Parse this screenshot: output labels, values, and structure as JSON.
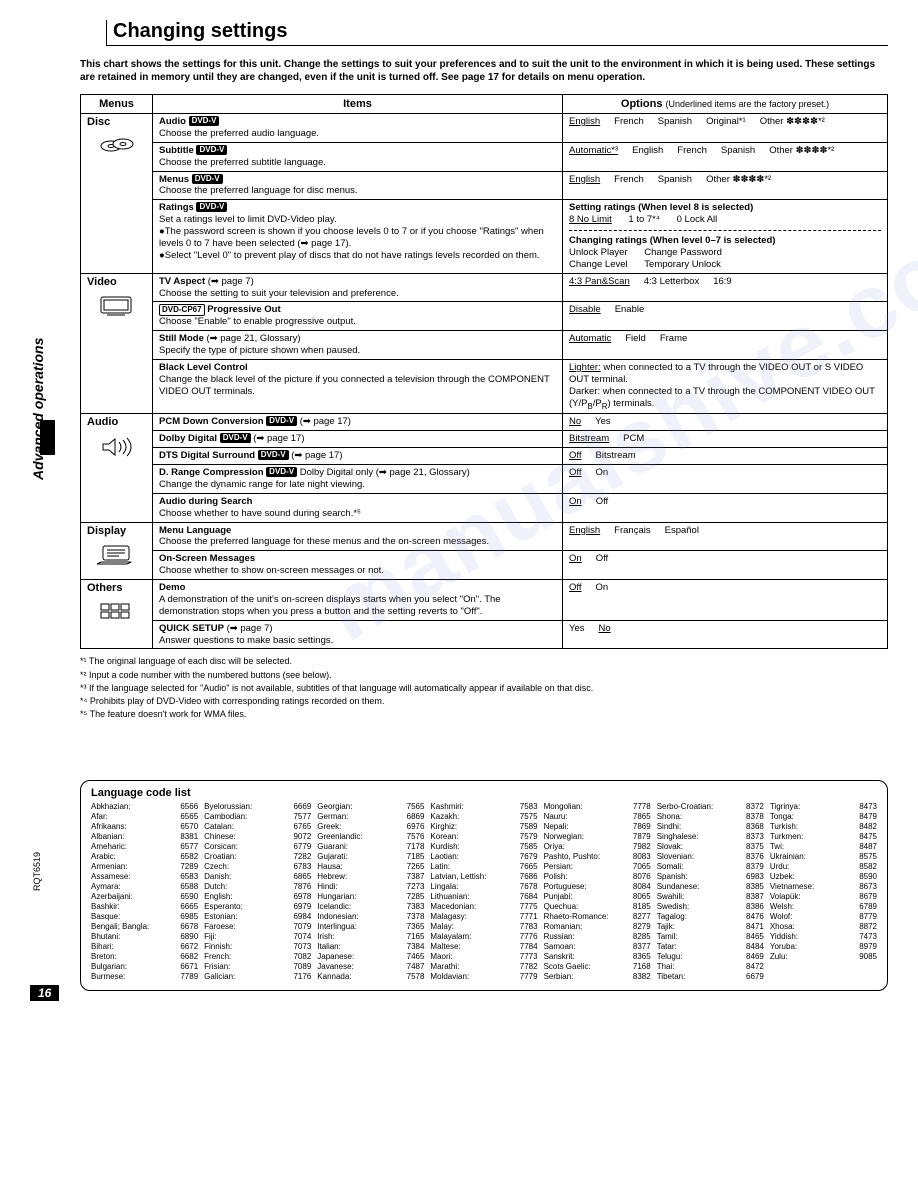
{
  "side_label": "Advanced operations",
  "doc_code": "RQT6519",
  "page_number": "16",
  "title": "Changing settings",
  "intro": "This chart shows the settings for this unit. Change the settings to suit your preferences and to suit the unit to the environment in which it is being used. These settings are retained in memory until they are changed, even if the unit is turned off. See page 17 for details on menu operation.",
  "headers": {
    "menus": "Menus",
    "items": "Items",
    "options": "Options",
    "options_note": "(Underlined items are the factory preset.)"
  },
  "menu_names": {
    "disc": "Disc",
    "video": "Video",
    "audio": "Audio",
    "display": "Display",
    "others": "Others"
  },
  "disc": {
    "audio": {
      "title": "Audio",
      "badge": "DVD-V",
      "desc": "Choose the preferred audio language.",
      "opts": [
        "English",
        "French",
        "Spanish",
        "Original*¹",
        "Other ✽✽✽✽*²"
      ],
      "preset": 0
    },
    "subtitle": {
      "title": "Subtitle",
      "badge": "DVD-V",
      "desc": "Choose the preferred subtitle language.",
      "opts": [
        "Automatic*³",
        "English",
        "French",
        "Spanish",
        "Other ✽✽✽✽*²"
      ],
      "preset": 0
    },
    "menus": {
      "title": "Menus",
      "badge": "DVD-V",
      "desc": "Choose the preferred language for disc menus.",
      "opts": [
        "English",
        "French",
        "Spanish",
        "Other ✽✽✽✽*²"
      ],
      "preset": 0
    },
    "ratings": {
      "title": "Ratings",
      "badge": "DVD-V",
      "desc": "Set a ratings level to limit DVD-Video play.",
      "b1": "●The password screen is shown if you choose levels 0 to 7 or if you choose \"Ratings\" when levels 0 to 7 have been selected (➡ page 17).",
      "b2": "●Select \"Level 0\" to prevent play of discs that do not have ratings levels recorded on them.",
      "set_title": "Setting ratings (When level 8 is selected)",
      "set_opts": [
        "8 No Limit",
        "1 to 7*⁴",
        "0 Lock All"
      ],
      "chg_title": "Changing ratings (When level 0–7 is selected)",
      "chg_opts": [
        "Unlock Player",
        "Change Password",
        "Change Level",
        "Temporary Unlock"
      ]
    }
  },
  "video": {
    "tv_aspect": {
      "title": "TV Aspect",
      "ref": "(➡ page 7)",
      "desc": "Choose the setting to suit your television and preference.",
      "opts": [
        "4:3 Pan&Scan",
        "4:3 Letterbox",
        "16:9"
      ],
      "preset": 0
    },
    "prog_out": {
      "badge": "DVD-CP67",
      "title": "Progressive Out",
      "desc": "Choose \"Enable\" to enable progressive output.",
      "opts": [
        "Disable",
        "Enable"
      ],
      "preset": 0
    },
    "still": {
      "title": "Still Mode",
      "ref": "(➡ page 21, Glossary)",
      "desc": "Specify the type of picture shown when paused.",
      "opts": [
        "Automatic",
        "Field",
        "Frame"
      ],
      "preset": 0
    },
    "black": {
      "title": "Black Level Control",
      "desc": "Change the black level of the picture if you connected a television through the COMPONENT VIDEO OUT terminals.",
      "l1": "Lighter: when connected to a TV through the VIDEO OUT or S VIDEO OUT terminal.",
      "l2": "Darker: when connected to a TV through the COMPONENT VIDEO OUT (Y/Pʙ/Pʀ) terminals."
    }
  },
  "audio": {
    "pcm": {
      "title": "PCM Down Conversion",
      "badge": "DVD-V",
      "ref": "(➡ page 17)",
      "opts": [
        "No",
        "Yes"
      ],
      "preset": 0
    },
    "dolby": {
      "title": "Dolby Digital",
      "badge": "DVD-V",
      "ref": "(➡ page 17)",
      "opts": [
        "Bitstream",
        "PCM"
      ],
      "preset": 0
    },
    "dts": {
      "title": "DTS Digital Surround",
      "badge": "DVD-V",
      "ref": "(➡ page 17)",
      "opts": [
        "Off",
        "Bitstream"
      ],
      "preset": 0
    },
    "drange": {
      "title": "D. Range Compression",
      "badge": "DVD-V",
      "note": "Dolby Digital only (➡ page 21, Glossary)",
      "desc": "Change the dynamic range for late night viewing.",
      "opts": [
        "Off",
        "On"
      ],
      "preset": 0
    },
    "search": {
      "title": "Audio during Search",
      "desc": "Choose whether to have sound during search.*⁵",
      "opts": [
        "On",
        "Off"
      ],
      "preset": 0
    }
  },
  "display": {
    "menu_lang": {
      "title": "Menu Language",
      "desc": "Choose the preferred language for these menus and the on-screen messages.",
      "opts": [
        "English",
        "Français",
        "Español"
      ],
      "preset": 0
    },
    "osd": {
      "title": "On-Screen Messages",
      "desc": "Choose whether to show on-screen messages or not.",
      "opts": [
        "On",
        "Off"
      ],
      "preset": 0
    }
  },
  "others": {
    "demo": {
      "title": "Demo",
      "desc": "A demonstration of the unit's on-screen displays starts when you select \"On\". The demonstration stops when you press a button and the setting reverts to \"Off\".",
      "opts": [
        "Off",
        "On"
      ],
      "preset": 0
    },
    "quick": {
      "title": "QUICK SETUP",
      "ref": "(➡ page 7)",
      "desc": "Answer questions to make basic settings.",
      "opts": [
        "Yes",
        "No"
      ],
      "preset": 1
    }
  },
  "footnotes": [
    "*¹ The original language of each disc will be selected.",
    "*² Input a code number with the numbered buttons (see below).",
    "*³ If the language selected for \"Audio\" is not available, subtitles of that language will automatically appear if available on that disc.",
    "*⁴ Prohibits play of DVD-Video with corresponding ratings recorded on them.",
    "*⁵ The feature doesn't work for WMA files."
  ],
  "lang_title": "Language code list",
  "languages": [
    [
      [
        "Abkhazian",
        "6566"
      ],
      [
        "Afar",
        "6565"
      ],
      [
        "Afrikaans",
        "6570"
      ],
      [
        "Albanian",
        "8381"
      ],
      [
        "Ameharic",
        "6577"
      ],
      [
        "Arabic",
        "6582"
      ],
      [
        "Armenian",
        "7289"
      ],
      [
        "Assamese",
        "6583"
      ],
      [
        "Aymara",
        "6588"
      ],
      [
        "Azerbaijani",
        "6590"
      ],
      [
        "Bashkir",
        "6665"
      ],
      [
        "Basque",
        "6985"
      ],
      [
        "Bengali; Bangla",
        "6678"
      ],
      [
        "Bhutani",
        "6890"
      ],
      [
        "Bihari",
        "6672"
      ],
      [
        "Breton",
        "6682"
      ],
      [
        "Bulgarian",
        "6671"
      ],
      [
        "Burmese",
        "7789"
      ]
    ],
    [
      [
        "Byelorussian",
        "6669"
      ],
      [
        "Cambodian",
        "7577"
      ],
      [
        "Catalan",
        "6765"
      ],
      [
        "Chinese",
        "9072"
      ],
      [
        "Corsican",
        "6779"
      ],
      [
        "Croatian",
        "7282"
      ],
      [
        "Czech",
        "6783"
      ],
      [
        "Danish",
        "6865"
      ],
      [
        "Dutch",
        "7876"
      ],
      [
        "English",
        "6978"
      ],
      [
        "Esperanto",
        "6979"
      ],
      [
        "Estonian",
        "6984"
      ],
      [
        "Faroese",
        "7079"
      ],
      [
        "Fiji",
        "7074"
      ],
      [
        "Finnish",
        "7073"
      ],
      [
        "French",
        "7082"
      ],
      [
        "Frisian",
        "7089"
      ],
      [
        "Galician",
        "7176"
      ]
    ],
    [
      [
        "Georgian",
        "7565"
      ],
      [
        "German",
        "6869"
      ],
      [
        "Greek",
        "6976"
      ],
      [
        "Greenlandic",
        "7576"
      ],
      [
        "Guarani",
        "7178"
      ],
      [
        "Gujarati",
        "7185"
      ],
      [
        "Hausa",
        "7265"
      ],
      [
        "Hebrew",
        "7387"
      ],
      [
        "Hindi",
        "7273"
      ],
      [
        "Hungarian",
        "7285"
      ],
      [
        "Icelandic",
        "7383"
      ],
      [
        "Indonesian",
        "7378"
      ],
      [
        "Interlingua",
        "7365"
      ],
      [
        "Irish",
        "7165"
      ],
      [
        "Italian",
        "7384"
      ],
      [
        "Japanese",
        "7465"
      ],
      [
        "Javanese",
        "7487"
      ],
      [
        "Kannada",
        "7578"
      ]
    ],
    [
      [
        "Kashmiri",
        "7583"
      ],
      [
        "Kazakh",
        "7575"
      ],
      [
        "Kirghiz",
        "7589"
      ],
      [
        "Korean",
        "7579"
      ],
      [
        "Kurdish",
        "7585"
      ],
      [
        "Laotian",
        "7679"
      ],
      [
        "Latin",
        "7665"
      ],
      [
        "Latvian, Lettish",
        "7686"
      ],
      [
        "Lingala",
        "7678"
      ],
      [
        "Lithuanian",
        "7684"
      ],
      [
        "Macedonian",
        "7775"
      ],
      [
        "Malagasy",
        "7771"
      ],
      [
        "Malay",
        "7783"
      ],
      [
        "Malayalam",
        "7776"
      ],
      [
        "Maltese",
        "7784"
      ],
      [
        "Maori",
        "7773"
      ],
      [
        "Marathi",
        "7782"
      ],
      [
        "Moldavian",
        "7779"
      ]
    ],
    [
      [
        "Mongolian",
        "7778"
      ],
      [
        "Nauru",
        "7865"
      ],
      [
        "Nepali",
        "7869"
      ],
      [
        "Norwegian",
        "7879"
      ],
      [
        "Oriya",
        "7982"
      ],
      [
        "Pashto, Pushto",
        "8083"
      ],
      [
        "Persian",
        "7065"
      ],
      [
        "Polish",
        "8076"
      ],
      [
        "Portuguese",
        "8084"
      ],
      [
        "Punjabi",
        "8065"
      ],
      [
        "Quechua",
        "8185"
      ],
      [
        "Rhaeto-Romance",
        "8277"
      ],
      [
        "Romanian",
        "8279"
      ],
      [
        "Russian",
        "8285"
      ],
      [
        "Samoan",
        "8377"
      ],
      [
        "Sanskrit",
        "8365"
      ],
      [
        "Scots Gaelic",
        "7168"
      ],
      [
        "Serbian",
        "8382"
      ]
    ],
    [
      [
        "Serbo-Croatian",
        "8372"
      ],
      [
        "Shona",
        "8378"
      ],
      [
        "Sindhi",
        "8368"
      ],
      [
        "Singhalese",
        "8373"
      ],
      [
        "Slovak",
        "8375"
      ],
      [
        "Slovenian",
        "8376"
      ],
      [
        "Somali",
        "8379"
      ],
      [
        "Spanish",
        "6983"
      ],
      [
        "Sundanese",
        "8385"
      ],
      [
        "Swahili",
        "8387"
      ],
      [
        "Swedish",
        "8386"
      ],
      [
        "Tagalog",
        "8476"
      ],
      [
        "Tajik",
        "8471"
      ],
      [
        "Tamil",
        "8465"
      ],
      [
        "Tatar",
        "8484"
      ],
      [
        "Telugu",
        "8469"
      ],
      [
        "Thai",
        "8472"
      ],
      [
        "Tibetan",
        "6679"
      ]
    ],
    [
      [
        "Tigrinya",
        "8473"
      ],
      [
        "Tonga",
        "8479"
      ],
      [
        "Turkish",
        "8482"
      ],
      [
        "Turkmen",
        "8475"
      ],
      [
        "Twi",
        "8487"
      ],
      [
        "Ukrainian",
        "8575"
      ],
      [
        "Urdu",
        "8582"
      ],
      [
        "Uzbek",
        "8590"
      ],
      [
        "Vietnamese",
        "8673"
      ],
      [
        "Volapük",
        "8679"
      ],
      [
        "Welsh",
        "6789"
      ],
      [
        "Wolof",
        "8779"
      ],
      [
        "Xhosa",
        "8872"
      ],
      [
        "Yiddish",
        "7473"
      ],
      [
        "Yoruba",
        "8979"
      ],
      [
        "Zulu",
        "9085"
      ]
    ]
  ]
}
